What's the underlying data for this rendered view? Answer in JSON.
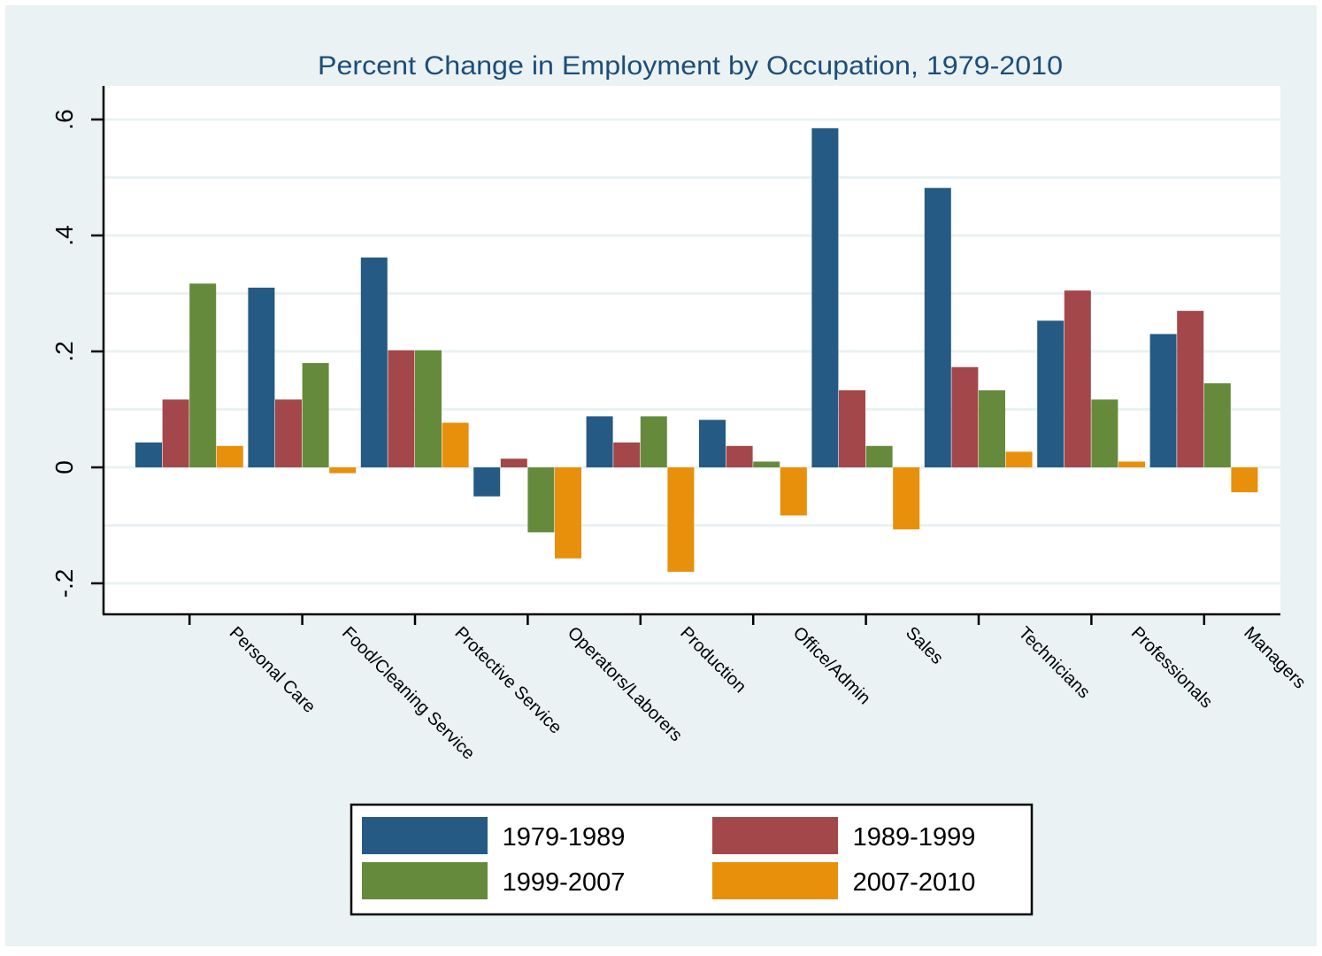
{
  "chart_data": {
    "type": "bar",
    "title": "Percent Change in Employment by Occupation, 1979-2010",
    "xlabel": "",
    "ylabel": "",
    "ylim": [
      -0.26,
      0.72
    ],
    "yticks": [
      -0.2,
      0,
      0.2,
      0.4,
      0.6
    ],
    "ytick_labels": [
      "-.2",
      "0",
      ".2",
      ".4",
      ".6"
    ],
    "grid": true,
    "legend_position": "bottom",
    "categories": [
      "Personal Care",
      "Food/Cleaning Service",
      "Protective Service",
      "Operators/Laborers",
      "Production",
      "Office/Admin",
      "Sales",
      "Technicians",
      "Professionals",
      "Managers"
    ],
    "series": [
      {
        "name": "1979-1989",
        "color": "#245a83",
        "values": [
          0.043,
          0.31,
          0.362,
          -0.05,
          0.088,
          0.082,
          0.585,
          0.482,
          0.253,
          0.23
        ]
      },
      {
        "name": "1989-1999",
        "color": "#a3474b",
        "values": [
          0.117,
          0.117,
          0.202,
          0.015,
          0.043,
          0.037,
          0.133,
          0.173,
          0.305,
          0.27
        ]
      },
      {
        "name": "1999-2007",
        "color": "#668a3b",
        "values": [
          0.317,
          0.18,
          0.202,
          -0.112,
          0.088,
          0.01,
          0.037,
          0.133,
          0.117,
          0.145
        ]
      },
      {
        "name": "2007-2010",
        "color": "#e8900b",
        "values": [
          0.037,
          -0.01,
          0.077,
          -0.157,
          -0.18,
          -0.083,
          -0.107,
          0.027,
          0.01,
          -0.043
        ]
      }
    ]
  },
  "colors": {
    "outer_background": "#eaf2f3",
    "plot_background": "#ffffff",
    "grid": "#eaf2f3",
    "title": "#1e4d77",
    "axis": "#000000"
  }
}
